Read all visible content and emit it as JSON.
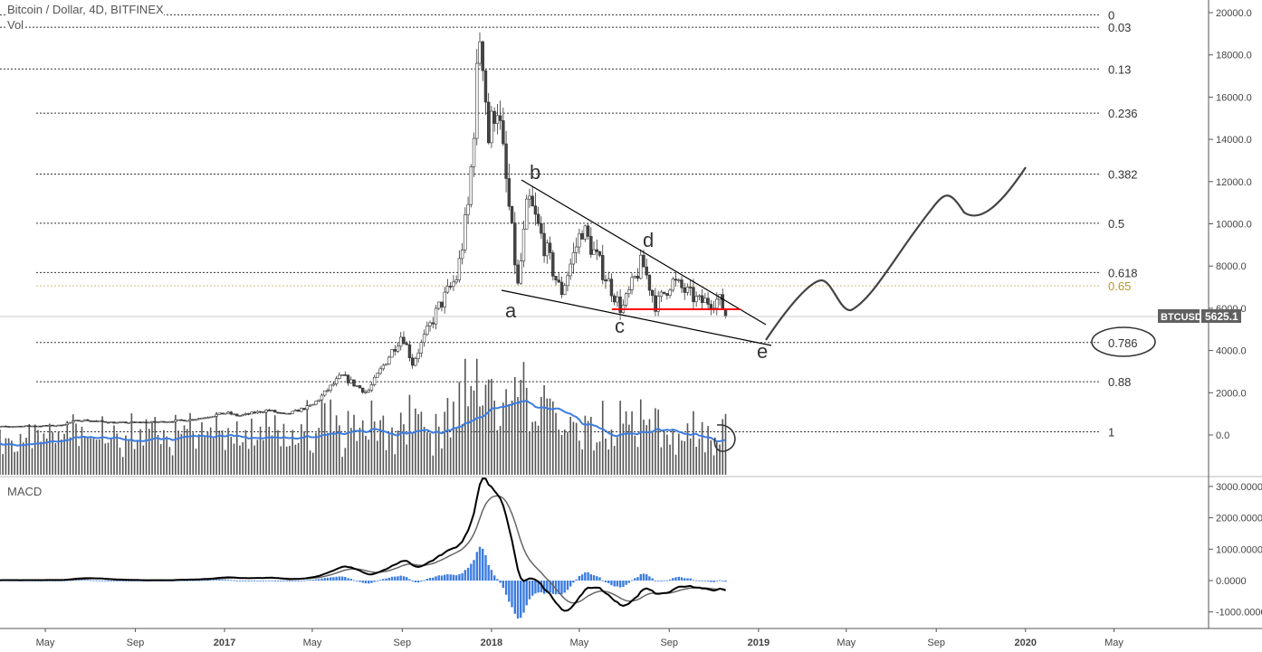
{
  "header": {
    "title": "Bitcoin / Dollar, 4D, BITFINEX",
    "vol_label": "Vol",
    "macd_label": "MACD"
  },
  "ticker": {
    "symbol": "BTCUSD",
    "last_price": "5625.1"
  },
  "colors": {
    "volume_ma": "#3d7de0",
    "macd_hist": "#3d7de0",
    "macd_line": "#000000",
    "signal_line": "#666666",
    "support_line": "#ff0000",
    "fib_065": "#b8962b"
  },
  "chart_data": [
    {
      "type": "candlestick",
      "title": "Bitcoin / Dollar, 4D, BITFINEX",
      "ylim": [
        0,
        20000
      ],
      "yticks": [
        "20000.0",
        "18000.0",
        "16000.0",
        "14000.0",
        "12000.0",
        "10000.0",
        "8000.0",
        "6000.0",
        "4000.0",
        "2000.0",
        "0.0"
      ],
      "xticks": [
        "May",
        "Sep",
        "2017",
        "May",
        "Sep",
        "2018",
        "May",
        "Sep",
        "2019",
        "May",
        "Sep",
        "2020",
        "May"
      ],
      "price_path": [
        [
          "2016-02-01",
          380
        ],
        [
          "2016-04-01",
          420
        ],
        [
          "2016-05-20",
          450
        ],
        [
          "2016-06-18",
          720
        ],
        [
          "2016-08-05",
          580
        ],
        [
          "2016-10-01",
          610
        ],
        [
          "2016-11-20",
          740
        ],
        [
          "2017-01-04",
          1050
        ],
        [
          "2017-01-20",
          900
        ],
        [
          "2017-03-01",
          1180
        ],
        [
          "2017-03-25",
          950
        ],
        [
          "2017-05-01",
          1400
        ],
        [
          "2017-06-10",
          2800
        ],
        [
          "2017-07-15",
          2000
        ],
        [
          "2017-09-01",
          4800
        ],
        [
          "2017-09-15",
          3400
        ],
        [
          "2017-10-20",
          6000
        ],
        [
          "2017-11-15",
          7500
        ],
        [
          "2017-12-01",
          11000
        ],
        [
          "2017-12-17",
          19500
        ],
        [
          "2017-12-28",
          14000
        ],
        [
          "2018-01-08",
          16000
        ],
        [
          "2018-02-06",
          7000
        ],
        [
          "2018-02-20",
          11200
        ],
        [
          "2018-04-06",
          6700
        ],
        [
          "2018-05-05",
          9800
        ],
        [
          "2018-06-28",
          5900
        ],
        [
          "2018-07-26",
          8200
        ],
        [
          "2018-08-14",
          6100
        ],
        [
          "2018-09-04",
          7300
        ],
        [
          "2018-10-12",
          6300
        ],
        [
          "2018-11-08",
          6400
        ],
        [
          "2018-11-20",
          5625
        ]
      ],
      "fib_levels": [
        {
          "level": "0",
          "v": 0
        },
        {
          "level": "0.03",
          "v": 0.03
        },
        {
          "level": "0.13",
          "v": 0.13
        },
        {
          "level": "0.236",
          "v": 0.236
        },
        {
          "level": "0.382",
          "v": 0.382
        },
        {
          "level": "0.5",
          "v": 0.5
        },
        {
          "level": "0.618",
          "v": 0.618
        },
        {
          "level": "0.65",
          "v": 0.65
        },
        {
          "level": "0.786",
          "v": 0.786
        },
        {
          "level": "0.88",
          "v": 0.88
        },
        {
          "level": "1",
          "v": 1
        }
      ],
      "fib_range": [
        19900,
        150
      ],
      "wave_labels": [
        "a",
        "b",
        "c",
        "d",
        "e"
      ]
    },
    {
      "type": "macd",
      "title": "MACD",
      "ylim": [
        -1200,
        3200
      ],
      "yticks": [
        "3000.0000",
        "2000.0000",
        "1000.0000",
        "0.0000",
        "-1000.0000"
      ]
    }
  ]
}
